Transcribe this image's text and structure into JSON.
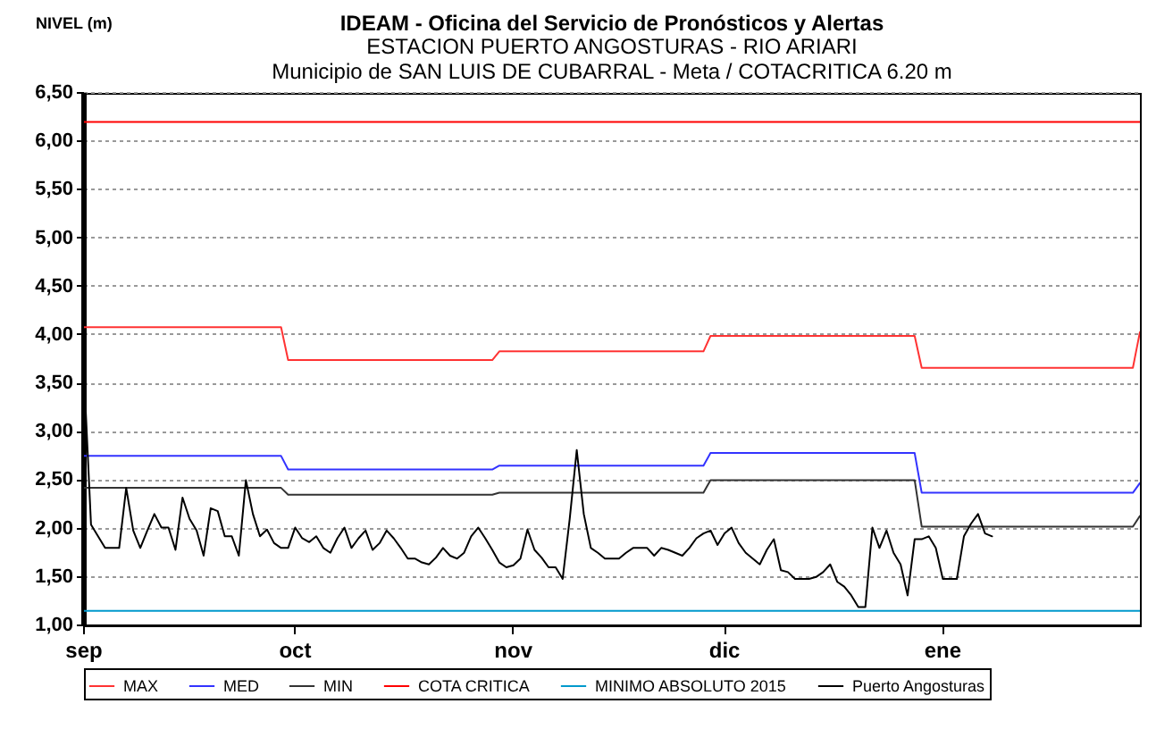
{
  "chart_data": {
    "type": "line",
    "title": "IDEAM - Oficina del Servicio de Pronósticos y Alertas",
    "subtitle": "ESTACION PUERTO ANGOSTURAS - RIO ARIARI\nMunicipio de SAN LUIS DE CUBARRAL - Meta / COTACRITICA 6.20 m",
    "ylabel": "NIVEL (m)",
    "categories": [
      "sep",
      null,
      null,
      null,
      null,
      null,
      null,
      null,
      null,
      null,
      null,
      null,
      null,
      null,
      null,
      null,
      null,
      null,
      null,
      null,
      null,
      null,
      null,
      null,
      null,
      null,
      null,
      null,
      null,
      null,
      "oct",
      null,
      null,
      null,
      null,
      null,
      null,
      null,
      null,
      null,
      null,
      null,
      null,
      null,
      null,
      null,
      null,
      null,
      null,
      null,
      null,
      null,
      null,
      null,
      null,
      null,
      null,
      null,
      null,
      null,
      null,
      "nov",
      null,
      null,
      null,
      null,
      null,
      null,
      null,
      null,
      null,
      null,
      null,
      null,
      null,
      null,
      null,
      null,
      null,
      null,
      null,
      null,
      null,
      null,
      null,
      null,
      null,
      null,
      null,
      null,
      null,
      "dic",
      null,
      null,
      null,
      null,
      null,
      null,
      null,
      null,
      null,
      null,
      null,
      null,
      null,
      null,
      null,
      null,
      null,
      null,
      null,
      null,
      null,
      null,
      null,
      null,
      null,
      null,
      null,
      null,
      null,
      null,
      "ene",
      null,
      null,
      null,
      null,
      null,
      null,
      null,
      null,
      null,
      null,
      null,
      null,
      null,
      null,
      null,
      null,
      null,
      null,
      null,
      null,
      null,
      null,
      null,
      null,
      null,
      null,
      null,
      null
    ],
    "ylim": [
      1,
      6.5
    ],
    "yticks": [
      {
        "value": 1,
        "label": "1,00"
      },
      {
        "value": 1.5,
        "label": "1,50"
      },
      {
        "value": 2,
        "label": "2,00"
      },
      {
        "value": 2.5,
        "label": "2,50"
      },
      {
        "value": 3,
        "label": "3,00"
      },
      {
        "value": 3.5,
        "label": "3,50"
      },
      {
        "value": 4,
        "label": "4,00"
      },
      {
        "value": 4.5,
        "label": "4,50"
      },
      {
        "value": 5,
        "label": "5,00"
      },
      {
        "value": 5.5,
        "label": "5,50"
      },
      {
        "value": 6,
        "label": "6,00"
      },
      {
        "value": 6.5,
        "label": "6,50"
      }
    ],
    "grid": "y",
    "legend": "bottom",
    "series": [
      {
        "name": "MAX",
        "color": "#ff3333",
        "values": [
          4.08,
          4.08,
          4.08,
          4.08,
          4.08,
          4.08,
          4.08,
          4.08,
          4.08,
          4.08,
          4.08,
          4.08,
          4.08,
          4.08,
          4.08,
          4.08,
          4.08,
          4.08,
          4.08,
          4.08,
          4.08,
          4.08,
          4.08,
          4.08,
          4.08,
          4.08,
          4.08,
          4.08,
          4.08,
          3.74,
          3.74,
          3.74,
          3.74,
          3.74,
          3.74,
          3.74,
          3.74,
          3.74,
          3.74,
          3.74,
          3.74,
          3.74,
          3.74,
          3.74,
          3.74,
          3.74,
          3.74,
          3.74,
          3.74,
          3.74,
          3.74,
          3.74,
          3.74,
          3.74,
          3.74,
          3.74,
          3.74,
          3.74,
          3.74,
          3.83,
          3.83,
          3.83,
          3.83,
          3.83,
          3.83,
          3.83,
          3.83,
          3.83,
          3.83,
          3.83,
          3.83,
          3.83,
          3.83,
          3.83,
          3.83,
          3.83,
          3.83,
          3.83,
          3.83,
          3.83,
          3.83,
          3.83,
          3.83,
          3.83,
          3.83,
          3.83,
          3.83,
          3.83,
          3.83,
          3.99,
          3.99,
          3.99,
          3.99,
          3.99,
          3.99,
          3.99,
          3.99,
          3.99,
          3.99,
          3.99,
          3.99,
          3.99,
          3.99,
          3.99,
          3.99,
          3.99,
          3.99,
          3.99,
          3.99,
          3.99,
          3.99,
          3.99,
          3.99,
          3.99,
          3.99,
          3.99,
          3.99,
          3.99,
          3.99,
          3.66,
          3.66,
          3.66,
          3.66,
          3.66,
          3.66,
          3.66,
          3.66,
          3.66,
          3.66,
          3.66,
          3.66,
          3.66,
          3.66,
          3.66,
          3.66,
          3.66,
          3.66,
          3.66,
          3.66,
          3.66,
          3.66,
          3.66,
          3.66,
          3.66,
          3.66,
          3.66,
          3.66,
          3.66,
          3.66,
          3.66,
          4.03
        ]
      },
      {
        "name": "MED",
        "color": "#3333ff",
        "values": [
          2.75,
          2.75,
          2.75,
          2.75,
          2.75,
          2.75,
          2.75,
          2.75,
          2.75,
          2.75,
          2.75,
          2.75,
          2.75,
          2.75,
          2.75,
          2.75,
          2.75,
          2.75,
          2.75,
          2.75,
          2.75,
          2.75,
          2.75,
          2.75,
          2.75,
          2.75,
          2.75,
          2.75,
          2.75,
          2.61,
          2.61,
          2.61,
          2.61,
          2.61,
          2.61,
          2.61,
          2.61,
          2.61,
          2.61,
          2.61,
          2.61,
          2.61,
          2.61,
          2.61,
          2.61,
          2.61,
          2.61,
          2.61,
          2.61,
          2.61,
          2.61,
          2.61,
          2.61,
          2.61,
          2.61,
          2.61,
          2.61,
          2.61,
          2.61,
          2.65,
          2.65,
          2.65,
          2.65,
          2.65,
          2.65,
          2.65,
          2.65,
          2.65,
          2.65,
          2.65,
          2.65,
          2.65,
          2.65,
          2.65,
          2.65,
          2.65,
          2.65,
          2.65,
          2.65,
          2.65,
          2.65,
          2.65,
          2.65,
          2.65,
          2.65,
          2.65,
          2.65,
          2.65,
          2.65,
          2.78,
          2.78,
          2.78,
          2.78,
          2.78,
          2.78,
          2.78,
          2.78,
          2.78,
          2.78,
          2.78,
          2.78,
          2.78,
          2.78,
          2.78,
          2.78,
          2.78,
          2.78,
          2.78,
          2.78,
          2.78,
          2.78,
          2.78,
          2.78,
          2.78,
          2.78,
          2.78,
          2.78,
          2.78,
          2.78,
          2.37,
          2.37,
          2.37,
          2.37,
          2.37,
          2.37,
          2.37,
          2.37,
          2.37,
          2.37,
          2.37,
          2.37,
          2.37,
          2.37,
          2.37,
          2.37,
          2.37,
          2.37,
          2.37,
          2.37,
          2.37,
          2.37,
          2.37,
          2.37,
          2.37,
          2.37,
          2.37,
          2.37,
          2.37,
          2.37,
          2.37,
          2.47
        ]
      },
      {
        "name": "MIN",
        "color": "#333333",
        "values": [
          2.42,
          2.42,
          2.42,
          2.42,
          2.42,
          2.42,
          2.42,
          2.42,
          2.42,
          2.42,
          2.42,
          2.42,
          2.42,
          2.42,
          2.42,
          2.42,
          2.42,
          2.42,
          2.42,
          2.42,
          2.42,
          2.42,
          2.42,
          2.42,
          2.42,
          2.42,
          2.42,
          2.42,
          2.42,
          2.35,
          2.35,
          2.35,
          2.35,
          2.35,
          2.35,
          2.35,
          2.35,
          2.35,
          2.35,
          2.35,
          2.35,
          2.35,
          2.35,
          2.35,
          2.35,
          2.35,
          2.35,
          2.35,
          2.35,
          2.35,
          2.35,
          2.35,
          2.35,
          2.35,
          2.35,
          2.35,
          2.35,
          2.35,
          2.35,
          2.37,
          2.37,
          2.37,
          2.37,
          2.37,
          2.37,
          2.37,
          2.37,
          2.37,
          2.37,
          2.37,
          2.37,
          2.37,
          2.37,
          2.37,
          2.37,
          2.37,
          2.37,
          2.37,
          2.37,
          2.37,
          2.37,
          2.37,
          2.37,
          2.37,
          2.37,
          2.37,
          2.37,
          2.37,
          2.37,
          2.5,
          2.5,
          2.5,
          2.5,
          2.5,
          2.5,
          2.5,
          2.5,
          2.5,
          2.5,
          2.5,
          2.5,
          2.5,
          2.5,
          2.5,
          2.5,
          2.5,
          2.5,
          2.5,
          2.5,
          2.5,
          2.5,
          2.5,
          2.5,
          2.5,
          2.5,
          2.5,
          2.5,
          2.5,
          2.5,
          2.02,
          2.02,
          2.02,
          2.02,
          2.02,
          2.02,
          2.02,
          2.02,
          2.02,
          2.02,
          2.02,
          2.02,
          2.02,
          2.02,
          2.02,
          2.02,
          2.02,
          2.02,
          2.02,
          2.02,
          2.02,
          2.02,
          2.02,
          2.02,
          2.02,
          2.02,
          2.02,
          2.02,
          2.02,
          2.02,
          2.02,
          2.13
        ]
      },
      {
        "name": "COTA CRITICA",
        "color": "#ff0000",
        "values": [
          6.2,
          6.2,
          6.2,
          6.2,
          6.2,
          6.2,
          6.2,
          6.2,
          6.2,
          6.2,
          6.2,
          6.2,
          6.2,
          6.2,
          6.2,
          6.2,
          6.2,
          6.2,
          6.2,
          6.2,
          6.2,
          6.2,
          6.2,
          6.2,
          6.2,
          6.2,
          6.2,
          6.2,
          6.2,
          6.2,
          6.2,
          6.2,
          6.2,
          6.2,
          6.2,
          6.2,
          6.2,
          6.2,
          6.2,
          6.2,
          6.2,
          6.2,
          6.2,
          6.2,
          6.2,
          6.2,
          6.2,
          6.2,
          6.2,
          6.2,
          6.2,
          6.2,
          6.2,
          6.2,
          6.2,
          6.2,
          6.2,
          6.2,
          6.2,
          6.2,
          6.2,
          6.2,
          6.2,
          6.2,
          6.2,
          6.2,
          6.2,
          6.2,
          6.2,
          6.2,
          6.2,
          6.2,
          6.2,
          6.2,
          6.2,
          6.2,
          6.2,
          6.2,
          6.2,
          6.2,
          6.2,
          6.2,
          6.2,
          6.2,
          6.2,
          6.2,
          6.2,
          6.2,
          6.2,
          6.2,
          6.2,
          6.2,
          6.2,
          6.2,
          6.2,
          6.2,
          6.2,
          6.2,
          6.2,
          6.2,
          6.2,
          6.2,
          6.2,
          6.2,
          6.2,
          6.2,
          6.2,
          6.2,
          6.2,
          6.2,
          6.2,
          6.2,
          6.2,
          6.2,
          6.2,
          6.2,
          6.2,
          6.2,
          6.2,
          6.2,
          6.2,
          6.2,
          6.2,
          6.2,
          6.2,
          6.2,
          6.2,
          6.2,
          6.2,
          6.2,
          6.2,
          6.2,
          6.2,
          6.2,
          6.2,
          6.2,
          6.2,
          6.2,
          6.2,
          6.2,
          6.2,
          6.2,
          6.2,
          6.2,
          6.2,
          6.2,
          6.2,
          6.2,
          6.2,
          6.2,
          6.2
        ]
      },
      {
        "name": "MINIMO ABSOLUTO 2015",
        "color": "#0099cc",
        "values": [
          1.15,
          1.15,
          1.15,
          1.15,
          1.15,
          1.15,
          1.15,
          1.15,
          1.15,
          1.15,
          1.15,
          1.15,
          1.15,
          1.15,
          1.15,
          1.15,
          1.15,
          1.15,
          1.15,
          1.15,
          1.15,
          1.15,
          1.15,
          1.15,
          1.15,
          1.15,
          1.15,
          1.15,
          1.15,
          1.15,
          1.15,
          1.15,
          1.15,
          1.15,
          1.15,
          1.15,
          1.15,
          1.15,
          1.15,
          1.15,
          1.15,
          1.15,
          1.15,
          1.15,
          1.15,
          1.15,
          1.15,
          1.15,
          1.15,
          1.15,
          1.15,
          1.15,
          1.15,
          1.15,
          1.15,
          1.15,
          1.15,
          1.15,
          1.15,
          1.15,
          1.15,
          1.15,
          1.15,
          1.15,
          1.15,
          1.15,
          1.15,
          1.15,
          1.15,
          1.15,
          1.15,
          1.15,
          1.15,
          1.15,
          1.15,
          1.15,
          1.15,
          1.15,
          1.15,
          1.15,
          1.15,
          1.15,
          1.15,
          1.15,
          1.15,
          1.15,
          1.15,
          1.15,
          1.15,
          1.15,
          1.15,
          1.15,
          1.15,
          1.15,
          1.15,
          1.15,
          1.15,
          1.15,
          1.15,
          1.15,
          1.15,
          1.15,
          1.15,
          1.15,
          1.15,
          1.15,
          1.15,
          1.15,
          1.15,
          1.15,
          1.15,
          1.15,
          1.15,
          1.15,
          1.15,
          1.15,
          1.15,
          1.15,
          1.15,
          1.15,
          1.15,
          1.15,
          1.15,
          1.15,
          1.15,
          1.15,
          1.15,
          1.15,
          1.15,
          1.15,
          1.15,
          1.15,
          1.15,
          1.15,
          1.15,
          1.15,
          1.15,
          1.15,
          1.15,
          1.15,
          1.15,
          1.15,
          1.15,
          1.15,
          1.15,
          1.15,
          1.15,
          1.15,
          1.15,
          1.15,
          1.15
        ]
      },
      {
        "name": "Puerto Angosturas",
        "color": "#000000",
        "values": [
          3.61,
          2.04,
          1.92,
          1.8,
          1.8,
          1.8,
          2.42,
          1.98,
          1.8,
          1.98,
          2.15,
          2.01,
          2.01,
          1.78,
          2.32,
          2.1,
          1.98,
          1.72,
          2.21,
          2.18,
          1.92,
          1.92,
          1.72,
          2.5,
          2.15,
          1.92,
          1.99,
          1.85,
          1.8,
          1.8,
          2.01,
          1.9,
          1.86,
          1.92,
          1.8,
          1.75,
          1.9,
          2.01,
          1.8,
          1.9,
          1.98,
          1.78,
          1.85,
          1.98,
          1.9,
          1.8,
          1.69,
          1.69,
          1.65,
          1.63,
          1.7,
          1.8,
          1.72,
          1.69,
          1.75,
          1.92,
          2.01,
          1.9,
          1.78,
          1.65,
          1.6,
          1.62,
          1.69,
          1.99,
          1.78,
          1.7,
          1.6,
          1.6,
          1.48,
          2.1,
          2.81,
          2.15,
          1.8,
          1.75,
          1.69,
          1.69,
          1.69,
          1.75,
          1.8,
          1.8,
          1.8,
          1.72,
          1.8,
          1.78,
          1.75,
          1.72,
          1.8,
          1.9,
          1.95,
          1.98,
          1.83,
          1.95,
          2.01,
          1.85,
          1.75,
          1.69,
          1.63,
          1.78,
          1.89,
          1.57,
          1.55,
          1.48,
          1.48,
          1.48,
          1.5,
          1.55,
          1.63,
          1.45,
          1.4,
          1.31,
          1.19,
          1.19,
          2.01,
          1.8,
          1.98,
          1.75,
          1.63,
          1.31,
          1.89,
          1.89,
          1.92,
          1.8,
          1.48,
          1.48,
          1.48,
          1.92,
          2.05,
          2.15,
          1.95,
          1.92,
          null,
          null,
          null,
          null,
          null,
          null,
          null,
          null,
          null,
          null,
          null,
          null,
          null,
          null,
          null,
          null,
          null,
          null,
          null,
          null,
          null
        ]
      }
    ]
  }
}
